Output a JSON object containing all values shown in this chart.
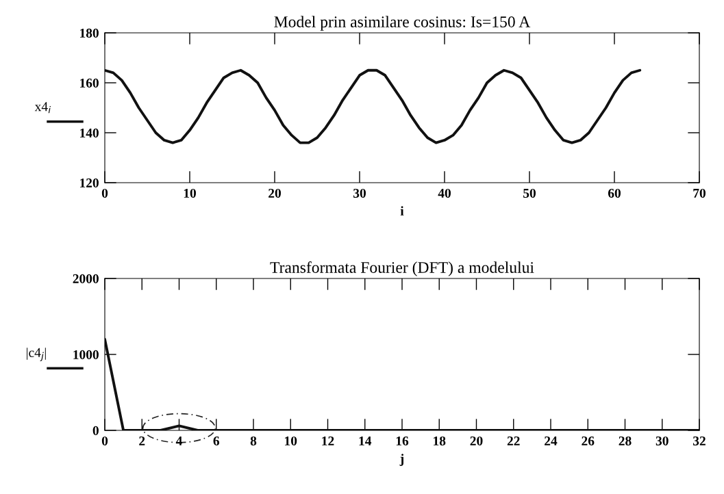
{
  "chart_data": [
    {
      "type": "line",
      "title": "Model prin asimilare cosinus: Is=150 A",
      "xlabel": "i",
      "ylabel": "x4$_{i}$",
      "x": [
        0,
        1,
        2,
        3,
        4,
        5,
        6,
        7,
        8,
        9,
        10,
        11,
        12,
        13,
        14,
        15,
        16,
        17,
        18,
        19,
        20,
        21,
        22,
        23,
        24,
        25,
        26,
        27,
        28,
        29,
        30,
        31,
        32,
        33,
        34,
        35,
        36,
        37,
        38,
        39,
        40,
        41,
        42,
        43,
        44,
        45,
        46,
        47,
        48,
        49,
        50,
        51,
        52,
        53,
        54,
        55,
        56,
        57,
        58,
        59,
        60,
        61,
        62,
        63
      ],
      "series": [
        {
          "color": "#111111",
          "values": [
            165,
            164,
            161,
            156,
            150,
            145,
            140,
            137,
            136,
            137,
            141,
            146,
            152,
            157,
            162,
            164,
            165,
            163,
            160,
            154,
            149,
            143,
            139,
            136,
            136,
            138,
            142,
            147,
            153,
            158,
            163,
            165,
            165,
            163,
            158,
            153,
            147,
            142,
            138,
            136,
            137,
            139,
            143,
            149,
            154,
            160,
            163,
            165,
            164,
            162,
            157,
            152,
            146,
            141,
            137,
            136,
            137,
            140,
            145,
            150,
            156,
            161,
            164,
            165
          ]
        }
      ],
      "xlim": [
        0,
        70
      ],
      "xticks": [
        0,
        10,
        20,
        30,
        40,
        50,
        60,
        70
      ],
      "ylim": [
        120,
        180
      ],
      "yticks": [
        120,
        140,
        160,
        180
      ],
      "grid": false,
      "legend": false
    },
    {
      "type": "line",
      "title": "Transformata Fourier (DFT) a modelului",
      "xlabel": "j",
      "ylabel": "|c4$_{j}$|",
      "x": [
        0,
        1,
        2,
        3,
        4,
        5,
        6,
        7,
        8,
        9,
        10,
        11,
        12,
        13,
        14,
        15,
        16,
        17,
        18,
        19,
        20,
        21,
        22,
        23,
        24,
        25,
        26,
        27,
        28,
        29,
        30,
        31,
        32
      ],
      "series": [
        {
          "color": "#111111",
          "values": [
            1200,
            0,
            0,
            0,
            60,
            0,
            0,
            0,
            0,
            0,
            0,
            0,
            0,
            0,
            0,
            0,
            0,
            0,
            0,
            0,
            0,
            0,
            0,
            0,
            0,
            0,
            0,
            0,
            0,
            0,
            0,
            0,
            0
          ]
        }
      ],
      "xlim": [
        0,
        32
      ],
      "xticks": [
        0,
        2,
        4,
        6,
        8,
        10,
        12,
        14,
        16,
        18,
        20,
        22,
        24,
        26,
        28,
        30,
        32
      ],
      "ylim": [
        0,
        2000
      ],
      "yticks": [
        0,
        1000,
        2000
      ],
      "grid": false,
      "legend": false
    }
  ]
}
